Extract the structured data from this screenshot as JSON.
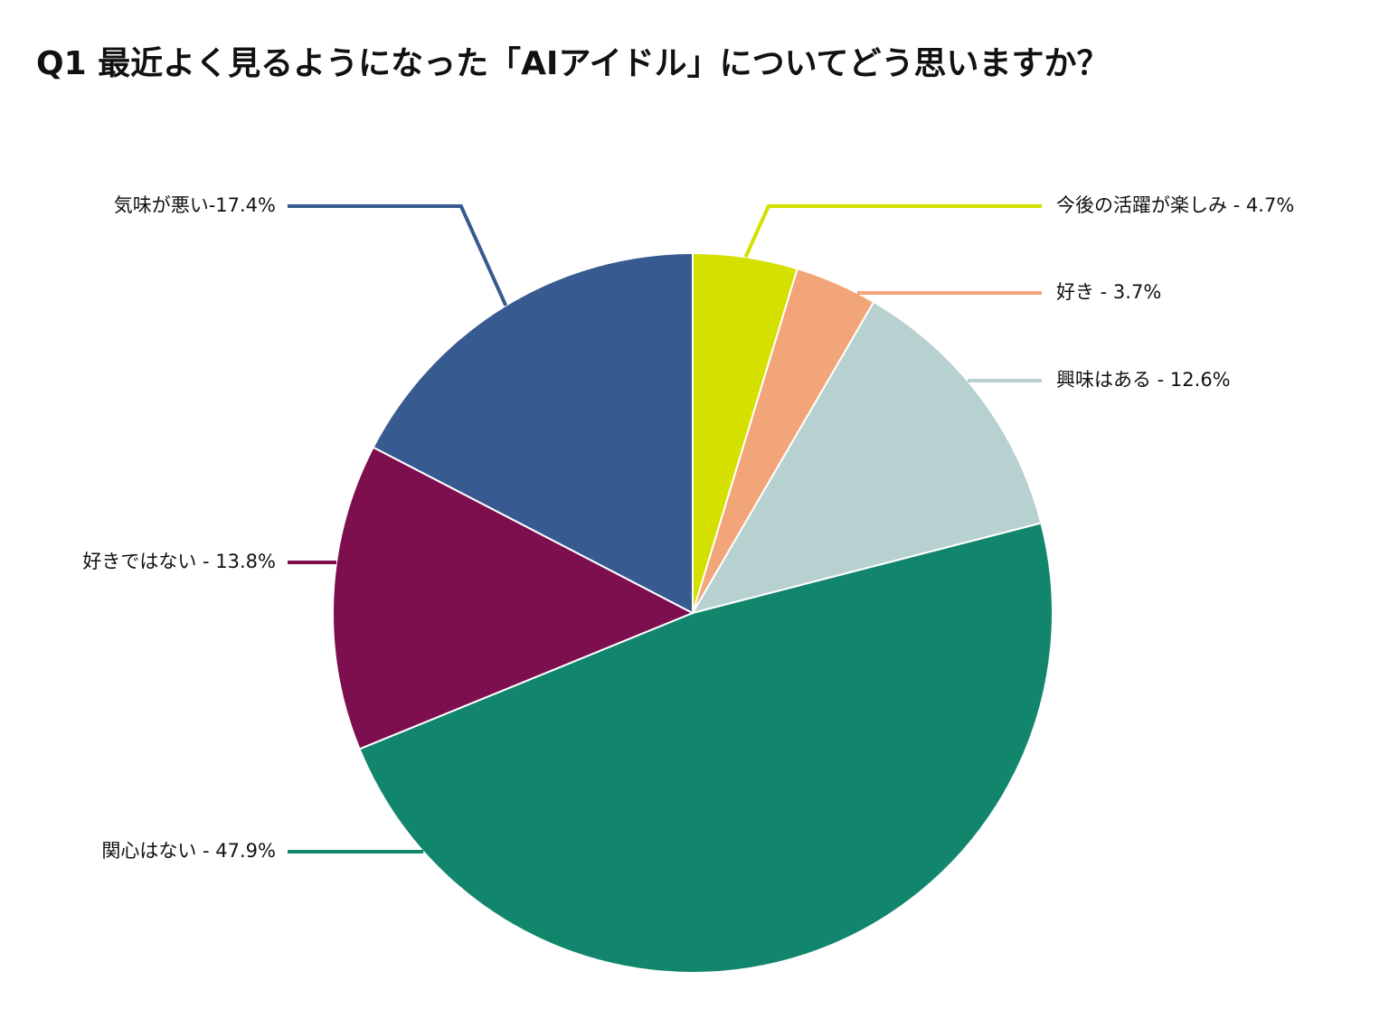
{
  "chart_data": {
    "type": "pie",
    "title": "Q1 最近よく見るようになった「AIアイドル」についてどう思いますか？",
    "values": [
      4.7,
      3.7,
      12.6,
      47.9,
      13.8,
      17.4
    ],
    "value_labels": [
      "今後の活躍が楽しみ - 4.7%",
      "好き - 3.7%",
      "興味はある - 12.6%",
      "関心はない - 47.9%",
      "好きではない - 13.8%",
      "気味が悪い-17.4%"
    ],
    "colors": [
      "#d4e000",
      "#f2a578",
      "#b7d1d0",
      "#12866d",
      "#7d0f4f",
      "#375a91"
    ]
  }
}
